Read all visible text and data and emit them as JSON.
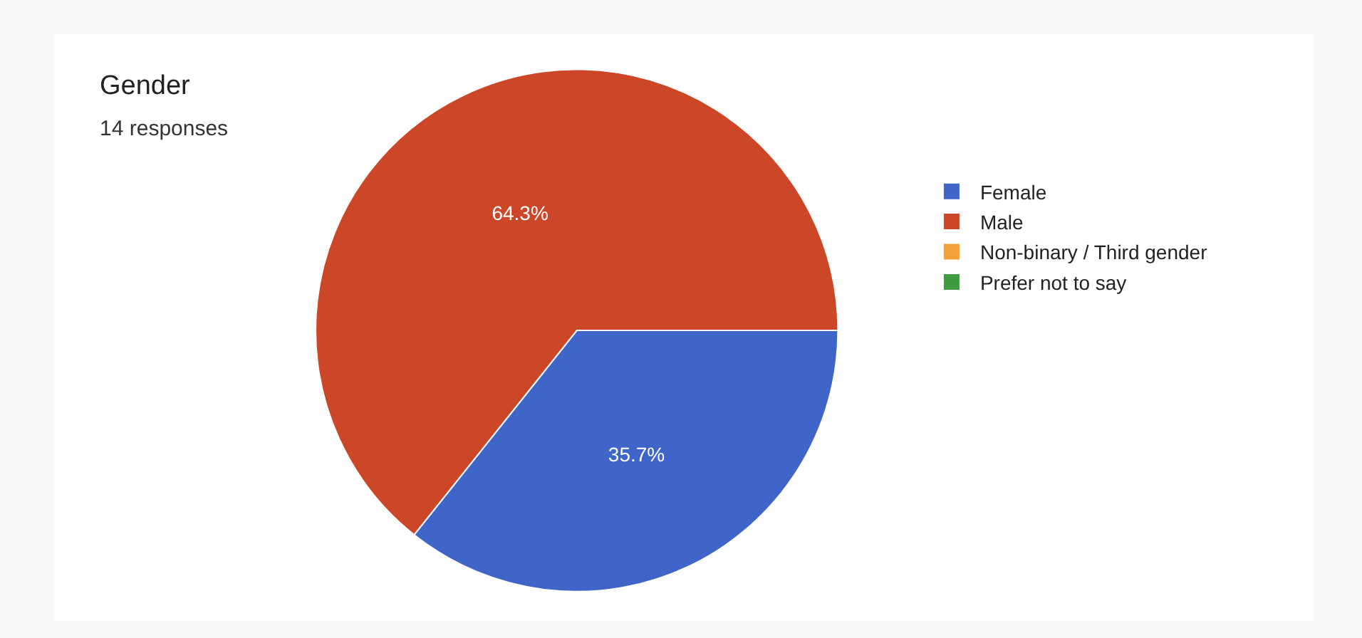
{
  "chart_data": {
    "type": "pie",
    "title": "Gender",
    "subtitle": "14 responses",
    "categories": [
      "Female",
      "Male",
      "Non-binary / Third gender",
      "Prefer not to say"
    ],
    "values": [
      35.7,
      64.3,
      0,
      0
    ],
    "colors": [
      "#3f65c8",
      "#cc4628",
      "#f4a13a",
      "#3e9a3e"
    ],
    "value_labels": [
      "35.7%",
      "64.3%",
      null,
      null
    ],
    "legend": "right"
  }
}
